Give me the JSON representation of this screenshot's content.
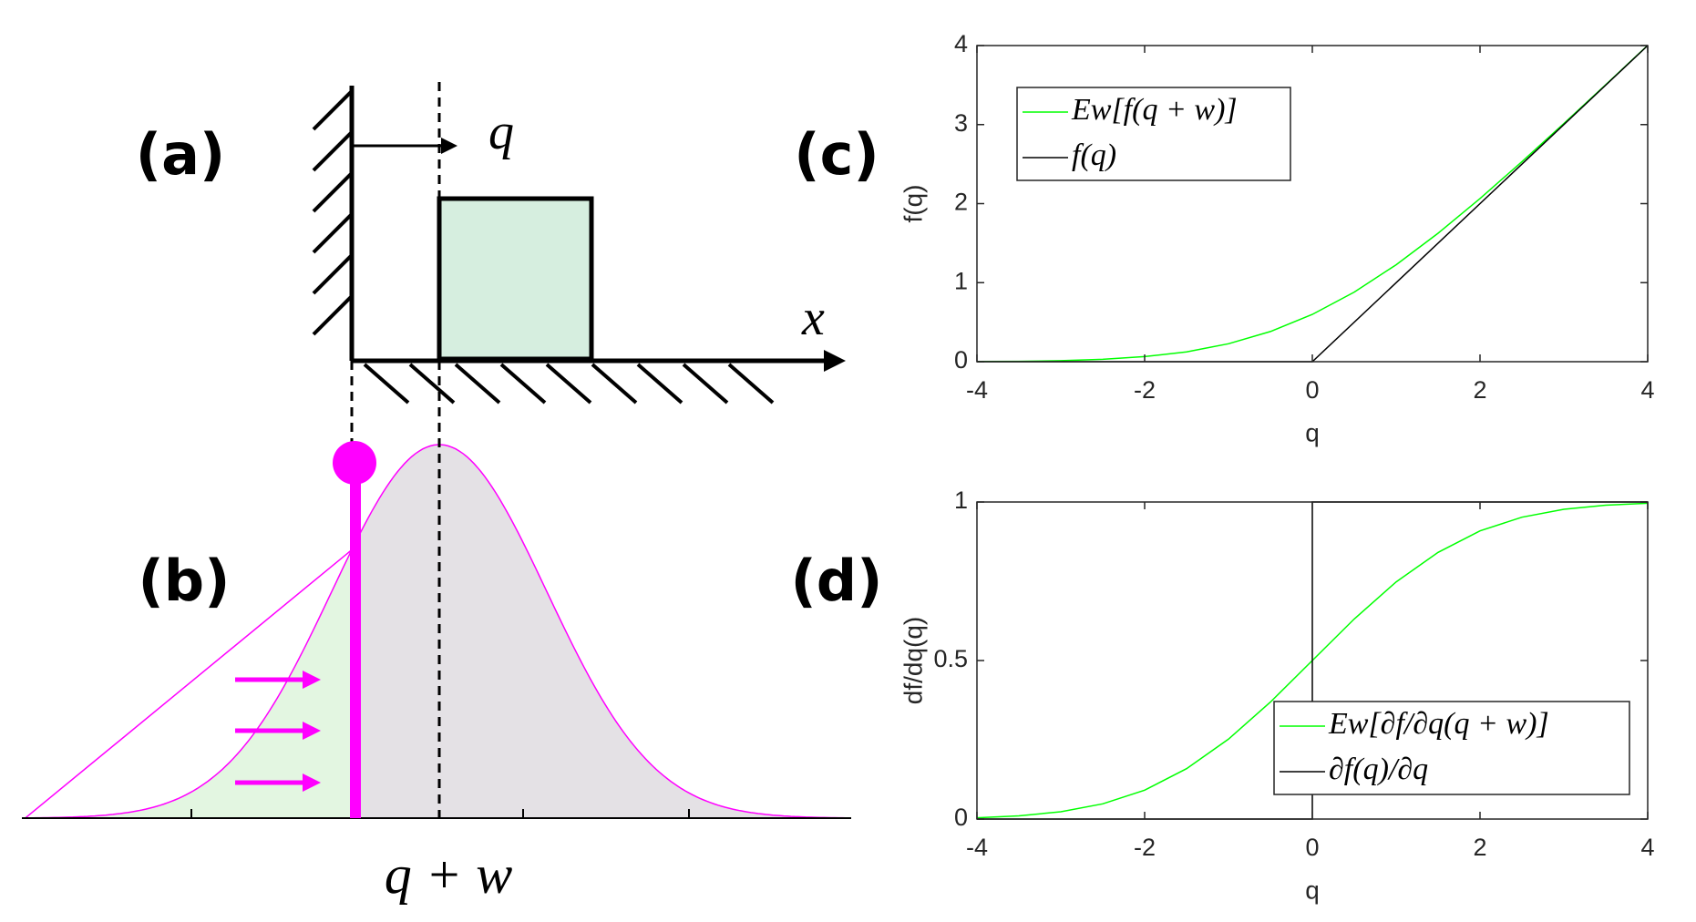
{
  "diagram": {
    "labels": [
      "(a)",
      "(b)"
    ],
    "q_label": "q",
    "x_label": "x",
    "axis_label": "q + w"
  },
  "chart_data": [
    {
      "type": "line",
      "label": "(c)",
      "xlabel": "q",
      "ylabel": "f(q)",
      "xlim": [
        -4,
        4
      ],
      "ylim": [
        0,
        4
      ],
      "xticks": [
        -4,
        -2,
        0,
        2,
        4
      ],
      "yticks": [
        0,
        1,
        2,
        3,
        4
      ],
      "legend": "upper left",
      "series": [
        {
          "name": "Ew[f(q + w)]",
          "color": "#00ff00",
          "x": [
            -4,
            -3.5,
            -3,
            -2.5,
            -2,
            -1.5,
            -1,
            -0.5,
            0,
            0.5,
            1,
            1.5,
            2,
            2.5,
            3,
            3.5,
            4
          ],
          "values": [
            0.002,
            0.005,
            0.013,
            0.03,
            0.064,
            0.125,
            0.227,
            0.381,
            0.598,
            0.881,
            1.227,
            1.625,
            2.064,
            2.53,
            3.013,
            3.505,
            4.002
          ]
        },
        {
          "name": "f(q)",
          "color": "#000000",
          "x": [
            -4,
            0,
            4
          ],
          "values": [
            0,
            0,
            4
          ]
        }
      ]
    },
    {
      "type": "line",
      "label": "(d)",
      "xlabel": "q",
      "ylabel": "df/dq(q)",
      "xlim": [
        -4,
        4
      ],
      "ylim": [
        0,
        1
      ],
      "xticks": [
        -4,
        -2,
        0,
        2,
        4
      ],
      "yticks": [
        0,
        0.5,
        1
      ],
      "legend": "lower right",
      "series": [
        {
          "name": "Ew[∂f/∂q(q + w)]",
          "color": "#00ff00",
          "x": [
            -4,
            -3.5,
            -3,
            -2.5,
            -2,
            -1.5,
            -1,
            -0.5,
            0,
            0.5,
            1,
            1.5,
            2,
            2.5,
            3,
            3.5,
            4
          ],
          "values": [
            0.004,
            0.01,
            0.023,
            0.048,
            0.091,
            0.159,
            0.252,
            0.369,
            0.5,
            0.631,
            0.748,
            0.841,
            0.909,
            0.952,
            0.977,
            0.99,
            0.996
          ]
        },
        {
          "name": "∂f(q)/∂q",
          "color": "#000000",
          "x": [
            -4,
            0,
            0,
            4
          ],
          "values": [
            0,
            0,
            1,
            1
          ]
        }
      ]
    }
  ]
}
